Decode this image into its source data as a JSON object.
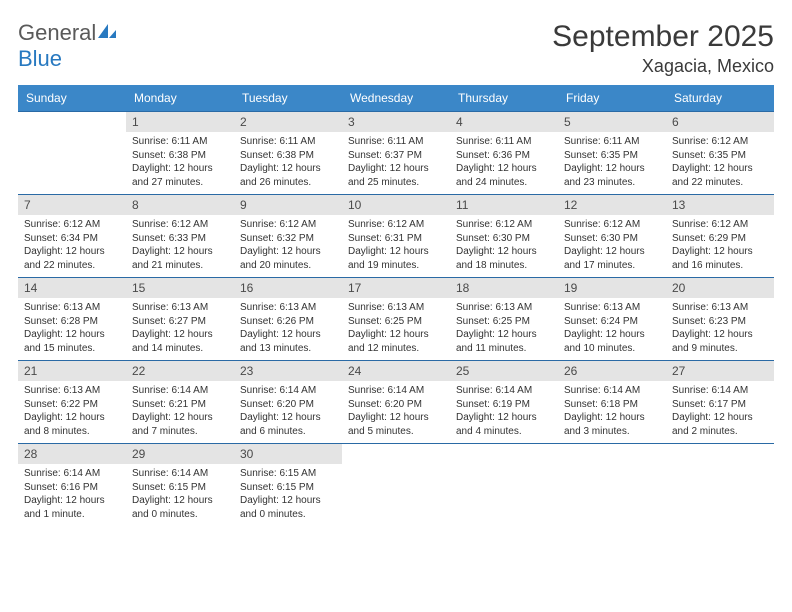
{
  "logo": {
    "word1": "General",
    "word2": "Blue"
  },
  "title": "September 2025",
  "location": "Xagacia, Mexico",
  "colors": {
    "header_bg": "#3b87c8",
    "week_border": "#2a6aa5",
    "daynum_bg": "#e4e4e4",
    "text": "#333333",
    "logo_gray": "#5a5a5a",
    "logo_blue": "#2879c0"
  },
  "dow": [
    "Sunday",
    "Monday",
    "Tuesday",
    "Wednesday",
    "Thursday",
    "Friday",
    "Saturday"
  ],
  "weeks": [
    [
      null,
      {
        "n": "1",
        "sr": "6:11 AM",
        "ss": "6:38 PM",
        "dl": "12 hours and 27 minutes."
      },
      {
        "n": "2",
        "sr": "6:11 AM",
        "ss": "6:38 PM",
        "dl": "12 hours and 26 minutes."
      },
      {
        "n": "3",
        "sr": "6:11 AM",
        "ss": "6:37 PM",
        "dl": "12 hours and 25 minutes."
      },
      {
        "n": "4",
        "sr": "6:11 AM",
        "ss": "6:36 PM",
        "dl": "12 hours and 24 minutes."
      },
      {
        "n": "5",
        "sr": "6:11 AM",
        "ss": "6:35 PM",
        "dl": "12 hours and 23 minutes."
      },
      {
        "n": "6",
        "sr": "6:12 AM",
        "ss": "6:35 PM",
        "dl": "12 hours and 22 minutes."
      }
    ],
    [
      {
        "n": "7",
        "sr": "6:12 AM",
        "ss": "6:34 PM",
        "dl": "12 hours and 22 minutes."
      },
      {
        "n": "8",
        "sr": "6:12 AM",
        "ss": "6:33 PM",
        "dl": "12 hours and 21 minutes."
      },
      {
        "n": "9",
        "sr": "6:12 AM",
        "ss": "6:32 PM",
        "dl": "12 hours and 20 minutes."
      },
      {
        "n": "10",
        "sr": "6:12 AM",
        "ss": "6:31 PM",
        "dl": "12 hours and 19 minutes."
      },
      {
        "n": "11",
        "sr": "6:12 AM",
        "ss": "6:30 PM",
        "dl": "12 hours and 18 minutes."
      },
      {
        "n": "12",
        "sr": "6:12 AM",
        "ss": "6:30 PM",
        "dl": "12 hours and 17 minutes."
      },
      {
        "n": "13",
        "sr": "6:12 AM",
        "ss": "6:29 PM",
        "dl": "12 hours and 16 minutes."
      }
    ],
    [
      {
        "n": "14",
        "sr": "6:13 AM",
        "ss": "6:28 PM",
        "dl": "12 hours and 15 minutes."
      },
      {
        "n": "15",
        "sr": "6:13 AM",
        "ss": "6:27 PM",
        "dl": "12 hours and 14 minutes."
      },
      {
        "n": "16",
        "sr": "6:13 AM",
        "ss": "6:26 PM",
        "dl": "12 hours and 13 minutes."
      },
      {
        "n": "17",
        "sr": "6:13 AM",
        "ss": "6:25 PM",
        "dl": "12 hours and 12 minutes."
      },
      {
        "n": "18",
        "sr": "6:13 AM",
        "ss": "6:25 PM",
        "dl": "12 hours and 11 minutes."
      },
      {
        "n": "19",
        "sr": "6:13 AM",
        "ss": "6:24 PM",
        "dl": "12 hours and 10 minutes."
      },
      {
        "n": "20",
        "sr": "6:13 AM",
        "ss": "6:23 PM",
        "dl": "12 hours and 9 minutes."
      }
    ],
    [
      {
        "n": "21",
        "sr": "6:13 AM",
        "ss": "6:22 PM",
        "dl": "12 hours and 8 minutes."
      },
      {
        "n": "22",
        "sr": "6:14 AM",
        "ss": "6:21 PM",
        "dl": "12 hours and 7 minutes."
      },
      {
        "n": "23",
        "sr": "6:14 AM",
        "ss": "6:20 PM",
        "dl": "12 hours and 6 minutes."
      },
      {
        "n": "24",
        "sr": "6:14 AM",
        "ss": "6:20 PM",
        "dl": "12 hours and 5 minutes."
      },
      {
        "n": "25",
        "sr": "6:14 AM",
        "ss": "6:19 PM",
        "dl": "12 hours and 4 minutes."
      },
      {
        "n": "26",
        "sr": "6:14 AM",
        "ss": "6:18 PM",
        "dl": "12 hours and 3 minutes."
      },
      {
        "n": "27",
        "sr": "6:14 AM",
        "ss": "6:17 PM",
        "dl": "12 hours and 2 minutes."
      }
    ],
    [
      {
        "n": "28",
        "sr": "6:14 AM",
        "ss": "6:16 PM",
        "dl": "12 hours and 1 minute."
      },
      {
        "n": "29",
        "sr": "6:14 AM",
        "ss": "6:15 PM",
        "dl": "12 hours and 0 minutes."
      },
      {
        "n": "30",
        "sr": "6:15 AM",
        "ss": "6:15 PM",
        "dl": "12 hours and 0 minutes."
      },
      null,
      null,
      null,
      null
    ]
  ],
  "labels": {
    "sunrise": "Sunrise:",
    "sunset": "Sunset:",
    "daylight": "Daylight:"
  }
}
